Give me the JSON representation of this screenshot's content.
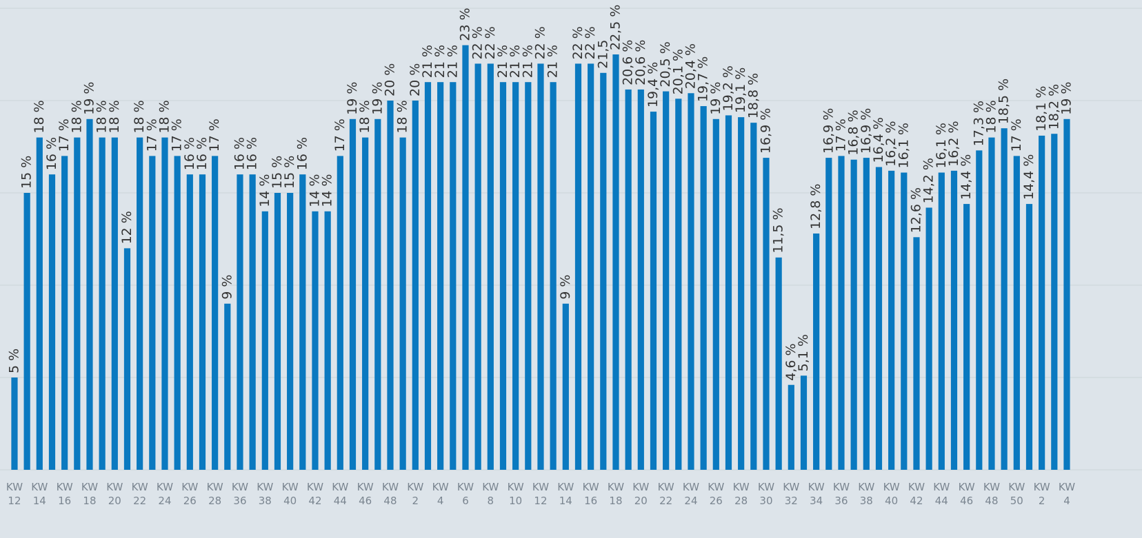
{
  "chart_data": {
    "type": "bar",
    "color": "#0a79c0",
    "grid": true,
    "ylim": [
      0,
      25
    ],
    "yticks": [
      0,
      5,
      10,
      15,
      20,
      25
    ],
    "categories": [
      "KW 12",
      null,
      "KW 14",
      null,
      "KW 16",
      null,
      "KW 18",
      null,
      "KW 20",
      null,
      "KW 22",
      null,
      "KW 24",
      null,
      "KW 26",
      null,
      "KW 28",
      null,
      "KW 36",
      null,
      "KW 38",
      null,
      "KW 40",
      null,
      "KW 42",
      null,
      "KW 44",
      null,
      "KW 46",
      null,
      "KW 48",
      null,
      "KW 2",
      null,
      "KW 4",
      null,
      "KW 6",
      null,
      "KW 8",
      null,
      "KW 10",
      null,
      "KW 12",
      null,
      "KW 14",
      null,
      "KW 16",
      null,
      "KW 18",
      null,
      "KW 20",
      null,
      "KW 22",
      null,
      "KW 24",
      null,
      "KW 26",
      null,
      "KW 28",
      null,
      "KW 30",
      null,
      "KW 32",
      null,
      "KW 34",
      null,
      "KW 36",
      null,
      "KW 38",
      null,
      "KW 40",
      null,
      "KW 42",
      null,
      "KW 44",
      null,
      "KW 46",
      null,
      "KW 48",
      null,
      "KW 50",
      null,
      "KW 2",
      null,
      "KW 4"
    ],
    "values": [
      5,
      15,
      18,
      16,
      17,
      18,
      19,
      18,
      18,
      12,
      18,
      17,
      18,
      17,
      16,
      16,
      17,
      9,
      16,
      16,
      14,
      15,
      15,
      16,
      14,
      14,
      17,
      19,
      18,
      19,
      20,
      18,
      20,
      21,
      21,
      21,
      23,
      22,
      22,
      21,
      21,
      21,
      22,
      21,
      9,
      22,
      22,
      21.5,
      22.5,
      20.6,
      20.6,
      19.4,
      20.5,
      20.1,
      20.4,
      19.7,
      19,
      19.2,
      19.1,
      18.8,
      16.9,
      11.5,
      4.6,
      5.1,
      12.8,
      16.9,
      17,
      16.8,
      16.9,
      16.4,
      16.2,
      16.1,
      12.6,
      14.2,
      16.1,
      16.2,
      14.4,
      17.3,
      18,
      18.5,
      17,
      14.4,
      18.1,
      18.2,
      19
    ],
    "value_labels": [
      "5 %",
      "15 %",
      "18 %",
      "16 %",
      "17 %",
      "18 %",
      "19 %",
      "18 %",
      "18 %",
      "12 %",
      "18 %",
      "17 %",
      "18 %",
      "17 %",
      "16 %",
      "16 %",
      "17 %",
      "9 %",
      "16 %",
      "16 %",
      "14 %",
      "15 %",
      "15 %",
      "16 %",
      "14 %",
      "14 %",
      "17 %",
      "19 %",
      "18 %",
      "19 %",
      "20 %",
      "18 %",
      "20 %",
      "21 %",
      "21 %",
      "21 %",
      "23 %",
      "22 %",
      "22 %",
      "21 %",
      "21 %",
      "21 %",
      "22 %",
      "21 %",
      "9 %",
      "22 %",
      "22 %",
      "21,5",
      "22,5 %",
      "20,6 %",
      "20,6 %",
      "19,4 %",
      "20,5 %",
      "20,1 %",
      "20,4 %",
      "19,7 %",
      "19 %",
      "19,2 %",
      "19,1 %",
      "18,8 %",
      "16,9 %",
      "11,5 %",
      "4,6 %",
      "5,1 %",
      "12,8 %",
      "16,9 %",
      "17 %",
      "16,8 %",
      "16,9 %",
      "16,4 %",
      "16,2 %",
      "16,1 %",
      "12,6 %",
      "14,2 %",
      "16,1 %",
      "16,2 %",
      "14,4 %",
      "17,3 %",
      "18 %",
      "18,5 %",
      "17 %",
      "14,4 %",
      "18,1 %",
      "18,2 %",
      "19 %"
    ]
  }
}
